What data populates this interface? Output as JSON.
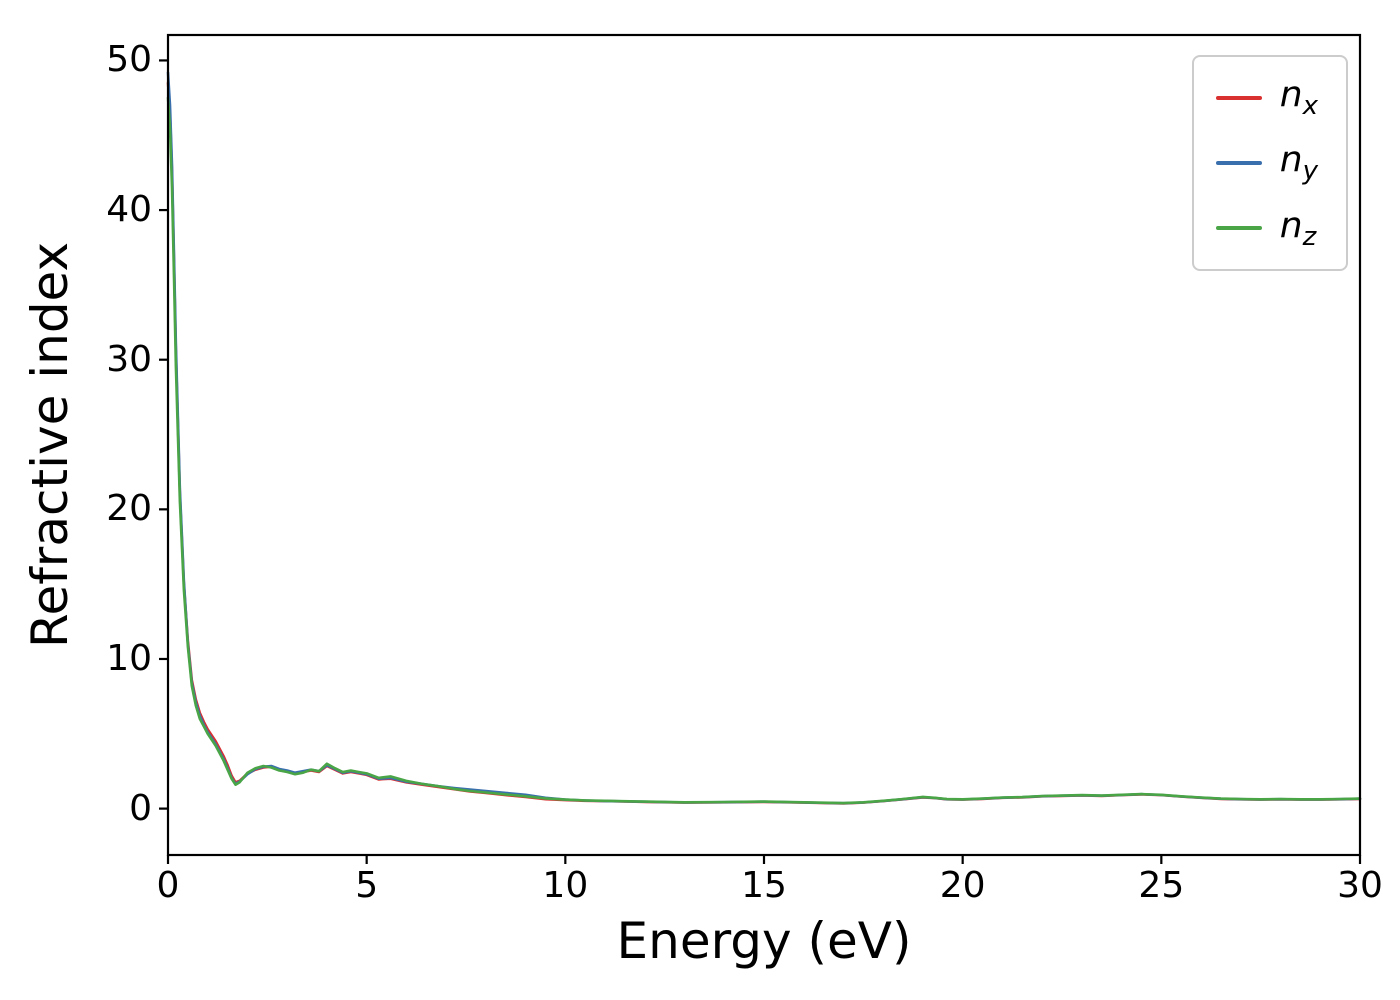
{
  "legend": {
    "entries": [
      {
        "symbol": "n",
        "subscript": "x"
      },
      {
        "symbol": "n",
        "subscript": "y"
      },
      {
        "symbol": "n",
        "subscript": "z"
      }
    ]
  },
  "chart_data": {
    "type": "line",
    "title": "",
    "xlabel": "Energy (eV)",
    "ylabel": "Refractive index",
    "xlim": [
      0,
      30
    ],
    "ylim": [
      -3.1,
      51.7
    ],
    "xticks": [
      0,
      5,
      10,
      15,
      20,
      25,
      30
    ],
    "yticks": [
      0,
      10,
      20,
      30,
      40,
      50
    ],
    "grid": false,
    "legend_position": "upper right",
    "axis_color": "#000000",
    "x": [
      0,
      0.05,
      0.1,
      0.15,
      0.2,
      0.3,
      0.4,
      0.5,
      0.6,
      0.7,
      0.8,
      0.9,
      1.0,
      1.1,
      1.2,
      1.4,
      1.5,
      1.6,
      1.7,
      1.8,
      2.0,
      2.2,
      2.4,
      2.6,
      2.8,
      3.0,
      3.2,
      3.4,
      3.6,
      3.8,
      4.0,
      4.2,
      4.4,
      4.6,
      4.8,
      5.0,
      5.3,
      5.6,
      6.0,
      6.4,
      6.8,
      7.2,
      7.6,
      8.0,
      8.5,
      9.0,
      9.5,
      10.0,
      10.5,
      11.0,
      12.0,
      13.0,
      14.0,
      15.0,
      16.0,
      17.0,
      17.5,
      18.0,
      18.5,
      19.0,
      19.3,
      19.6,
      20.0,
      20.5,
      21.0,
      21.5,
      22.0,
      22.5,
      23.0,
      23.5,
      24.0,
      24.5,
      25.0,
      25.5,
      26.0,
      26.5,
      27.0,
      27.5,
      28.0,
      28.5,
      29.0,
      29.5,
      30.0
    ],
    "series": [
      {
        "name": "n_x",
        "color": "#d93030",
        "values": [
          48.5,
          46.5,
          42.5,
          36.5,
          30.5,
          21.0,
          15.0,
          11.2,
          8.6,
          7.3,
          6.4,
          5.8,
          5.3,
          4.9,
          4.5,
          3.5,
          2.9,
          2.2,
          1.75,
          1.85,
          2.35,
          2.6,
          2.75,
          2.8,
          2.6,
          2.5,
          2.35,
          2.45,
          2.55,
          2.45,
          2.85,
          2.6,
          2.35,
          2.45,
          2.35,
          2.25,
          1.95,
          2.0,
          1.75,
          1.6,
          1.45,
          1.3,
          1.15,
          1.05,
          0.9,
          0.78,
          0.63,
          0.57,
          0.52,
          0.5,
          0.45,
          0.4,
          0.42,
          0.45,
          0.4,
          0.35,
          0.4,
          0.5,
          0.62,
          0.75,
          0.7,
          0.62,
          0.6,
          0.65,
          0.72,
          0.75,
          0.82,
          0.85,
          0.88,
          0.85,
          0.9,
          0.95,
          0.9,
          0.8,
          0.72,
          0.65,
          0.62,
          0.6,
          0.62,
          0.6,
          0.6,
          0.62,
          0.65
        ]
      },
      {
        "name": "n_y",
        "color": "#3a6fad",
        "values": [
          49.2,
          47.0,
          43.0,
          37.0,
          31.0,
          21.3,
          15.2,
          11.0,
          8.4,
          7.1,
          6.2,
          5.6,
          5.1,
          4.7,
          4.3,
          3.3,
          2.7,
          2.05,
          1.65,
          1.8,
          2.3,
          2.65,
          2.8,
          2.85,
          2.65,
          2.55,
          2.4,
          2.5,
          2.6,
          2.5,
          2.9,
          2.65,
          2.4,
          2.5,
          2.4,
          2.3,
          2.0,
          2.05,
          1.8,
          1.65,
          1.5,
          1.38,
          1.28,
          1.18,
          1.05,
          0.92,
          0.72,
          0.6,
          0.54,
          0.5,
          0.46,
          0.41,
          0.43,
          0.46,
          0.41,
          0.36,
          0.41,
          0.51,
          0.63,
          0.76,
          0.71,
          0.63,
          0.61,
          0.66,
          0.73,
          0.76,
          0.83,
          0.86,
          0.89,
          0.86,
          0.91,
          0.96,
          0.91,
          0.81,
          0.73,
          0.66,
          0.63,
          0.61,
          0.63,
          0.61,
          0.61,
          0.63,
          0.66
        ]
      },
      {
        "name": "n_z",
        "color": "#4aa547",
        "values": [
          47.5,
          45.5,
          41.5,
          35.5,
          29.5,
          20.5,
          14.6,
          10.8,
          8.2,
          6.9,
          6.0,
          5.5,
          5.0,
          4.6,
          4.2,
          3.2,
          2.6,
          2.0,
          1.6,
          1.75,
          2.4,
          2.7,
          2.85,
          2.75,
          2.55,
          2.45,
          2.3,
          2.4,
          2.6,
          2.5,
          3.0,
          2.7,
          2.45,
          2.55,
          2.45,
          2.35,
          2.05,
          2.15,
          1.85,
          1.65,
          1.5,
          1.32,
          1.18,
          1.08,
          0.95,
          0.82,
          0.68,
          0.6,
          0.55,
          0.52,
          0.47,
          0.42,
          0.44,
          0.47,
          0.42,
          0.37,
          0.42,
          0.52,
          0.64,
          0.78,
          0.72,
          0.64,
          0.62,
          0.67,
          0.74,
          0.77,
          0.84,
          0.87,
          0.9,
          0.87,
          0.92,
          0.97,
          0.92,
          0.82,
          0.74,
          0.67,
          0.64,
          0.62,
          0.64,
          0.62,
          0.62,
          0.64,
          0.67
        ]
      }
    ]
  }
}
